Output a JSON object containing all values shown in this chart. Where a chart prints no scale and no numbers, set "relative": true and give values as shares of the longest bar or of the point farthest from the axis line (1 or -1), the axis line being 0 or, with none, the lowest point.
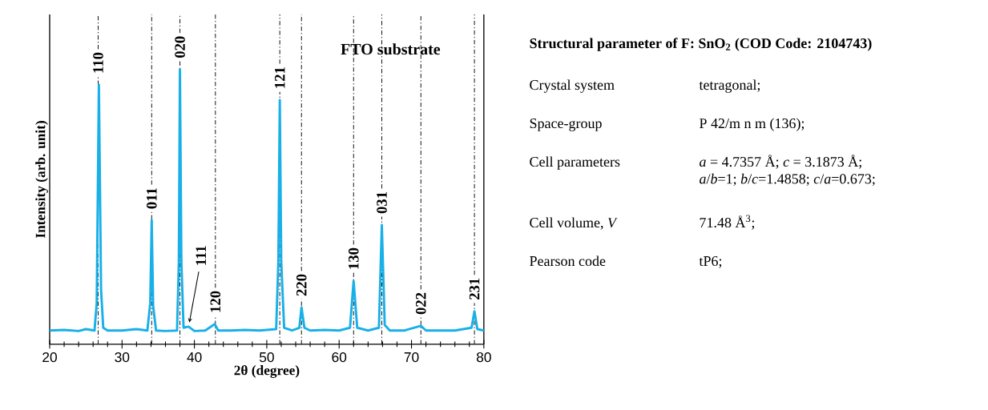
{
  "chart_data": [
    {
      "type": "line",
      "xlabel": "2θ (degree)",
      "ylabel": "Intensity (arb. unit)",
      "relative": true,
      "xlim": [
        20,
        80
      ],
      "xticks": [
        20,
        30,
        40,
        50,
        60,
        70,
        80
      ],
      "marker": "none",
      "line_style": "solid",
      "x": [
        20,
        22,
        24,
        25,
        26.2,
        26.5,
        26.8,
        27.1,
        27.4,
        28,
        30,
        32,
        33.5,
        33.9,
        34.1,
        34.3,
        34.7,
        36,
        37.6,
        37.85,
        38.0,
        38.2,
        38.5,
        39.2,
        40,
        41.5,
        42.8,
        43.3,
        45,
        47,
        49,
        51.3,
        51.6,
        51.8,
        52.0,
        52.4,
        53.5,
        54.5,
        54.8,
        55.2,
        56,
        58,
        60,
        61.5,
        62.0,
        62.5,
        64,
        65.5,
        65.9,
        66.3,
        67,
        69,
        71.3,
        72,
        74,
        76,
        78.3,
        78.7,
        79.1,
        80
      ],
      "series": [
        {
          "color": "#19b0e8",
          "values": [
            0.05,
            0.052,
            0.048,
            0.055,
            0.05,
            0.15,
            0.944,
            0.2,
            0.06,
            0.05,
            0.05,
            0.055,
            0.05,
            0.15,
            0.451,
            0.14,
            0.05,
            0.048,
            0.05,
            0.3,
            1.0,
            0.3,
            0.06,
            0.064,
            0.048,
            0.05,
            0.073,
            0.05,
            0.05,
            0.052,
            0.05,
            0.055,
            0.3,
            0.888,
            0.3,
            0.06,
            0.05,
            0.06,
            0.134,
            0.06,
            0.05,
            0.052,
            0.05,
            0.06,
            0.23,
            0.06,
            0.05,
            0.06,
            0.434,
            0.07,
            0.05,
            0.05,
            0.067,
            0.05,
            0.05,
            0.05,
            0.06,
            0.12,
            0.055,
            0.05
          ]
        }
      ],
      "ref_lines": [
        {
          "axis": "x",
          "value": 26.7,
          "line_style": "dashed"
        },
        {
          "axis": "x",
          "value": 34.1,
          "line_style": "dashed"
        },
        {
          "axis": "x",
          "value": 38.0,
          "line_style": "dashed"
        },
        {
          "axis": "x",
          "value": 42.9,
          "line_style": "dashed"
        },
        {
          "axis": "x",
          "value": 51.8,
          "line_style": "dashed"
        },
        {
          "axis": "x",
          "value": 54.8,
          "line_style": "dashed"
        },
        {
          "axis": "x",
          "value": 62.0,
          "line_style": "dashed"
        },
        {
          "axis": "x",
          "value": 65.9,
          "line_style": "dashed"
        },
        {
          "axis": "x",
          "value": 71.3,
          "line_style": "dashed"
        },
        {
          "axis": "x",
          "value": 78.7,
          "line_style": "dashed"
        }
      ],
      "annotations": [
        {
          "text": "110",
          "x": 26.8,
          "y": 0.944
        },
        {
          "text": "011",
          "x": 34.1,
          "y": 0.451
        },
        {
          "text": "020",
          "x": 38.0,
          "y": 1.0
        },
        {
          "text": "111",
          "x": 39.2,
          "y": 0.064
        },
        {
          "text": "120",
          "x": 42.8,
          "y": 0.073
        },
        {
          "text": "121",
          "x": 51.8,
          "y": 0.888
        },
        {
          "text": "220",
          "x": 54.8,
          "y": 0.134
        },
        {
          "text": "130",
          "x": 62.0,
          "y": 0.23
        },
        {
          "text": "031",
          "x": 65.9,
          "y": 0.434
        },
        {
          "text": "022",
          "x": 71.3,
          "y": 0.067
        },
        {
          "text": "231",
          "x": 78.7,
          "y": 0.12
        },
        "FTO substrate"
      ]
    },
    {
      "type": "other",
      "title": "Structural parameter of F: SnO$_{2}$ (COD Code: 2104743)",
      "annotations": [
        "Crystal system",
        "tetragonal;",
        "Space-group",
        "P 42/m n m (136);",
        "Cell parameters",
        "*a* = 4.7357 Å; *c* = 3.1873 Å;",
        "*a*/*b*=1; *b*/*c*=1.4858; *c*/*a*=0.673;",
        "Cell volume, *V*",
        "71.48 Å$^{3}$;",
        "Pearson code",
        "tP6;"
      ]
    }
  ]
}
